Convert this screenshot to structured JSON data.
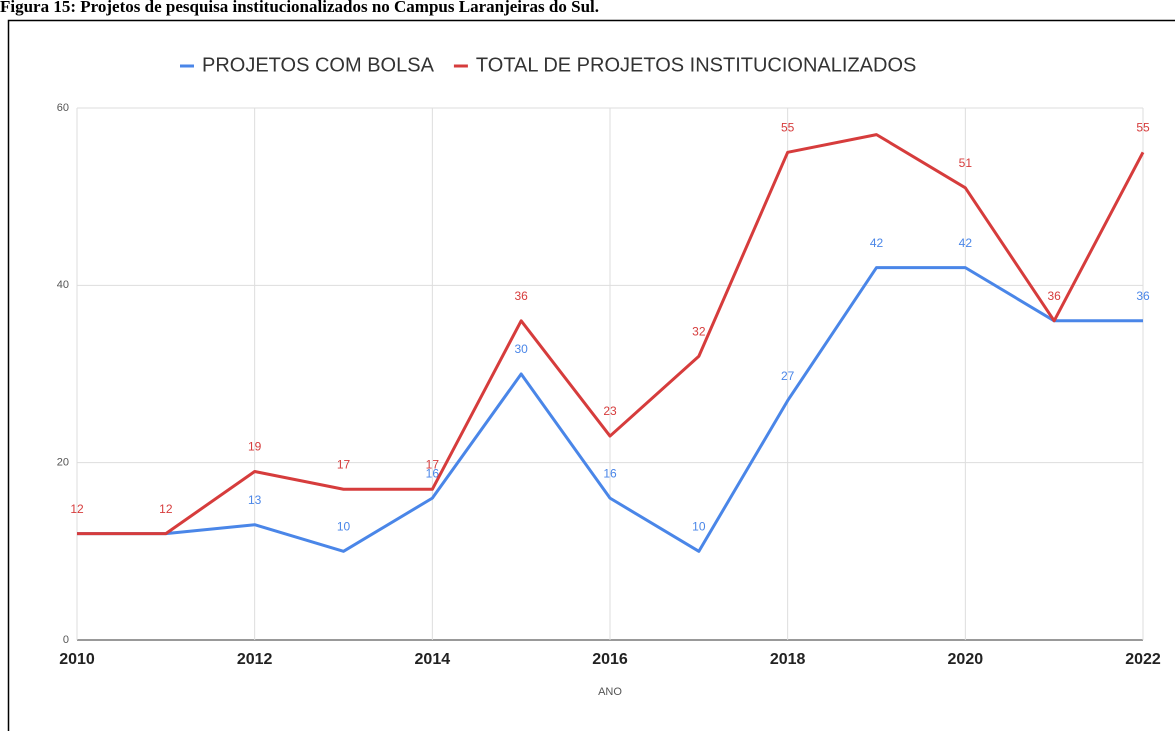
{
  "chart_data": {
    "type": "line",
    "title": "Figura 15: Projetos de pesquisa institucionalizados no Campus Laranjeiras do Sul.",
    "x_label": "ANO",
    "x": [
      2010,
      2011,
      2012,
      2013,
      2014,
      2015,
      2016,
      2017,
      2018,
      2019,
      2020,
      2021,
      2022
    ],
    "series": [
      {
        "name": "PROJETOS COM BOLSA",
        "color": "#4a86e8",
        "values": [
          12,
          12,
          13,
          10,
          16,
          30,
          16,
          10,
          27,
          42,
          42,
          36,
          36
        ],
        "value_labels": [
          null,
          null,
          "13",
          "10",
          "16",
          "30",
          "16",
          "10",
          "27",
          "42",
          "42",
          null,
          "36"
        ]
      },
      {
        "name": "TOTAL DE PROJETOS INSTITUCIONALIZADOS",
        "color": "#d63c3c",
        "values": [
          12,
          12,
          19,
          17,
          17,
          36,
          23,
          32,
          55,
          57,
          51,
          36,
          55
        ],
        "value_labels": [
          "12",
          "12",
          "19",
          "17",
          "17",
          "36",
          "23",
          "32",
          "55",
          null,
          "51",
          "36",
          "55"
        ]
      }
    ],
    "xlim": [
      2010,
      2022
    ],
    "xticks": [
      2010,
      2012,
      2014,
      2016,
      2018,
      2020,
      2022
    ],
    "ylim": [
      0,
      60
    ],
    "yticks": [
      0,
      20,
      40,
      60
    ],
    "grid": true,
    "legend": "top"
  }
}
